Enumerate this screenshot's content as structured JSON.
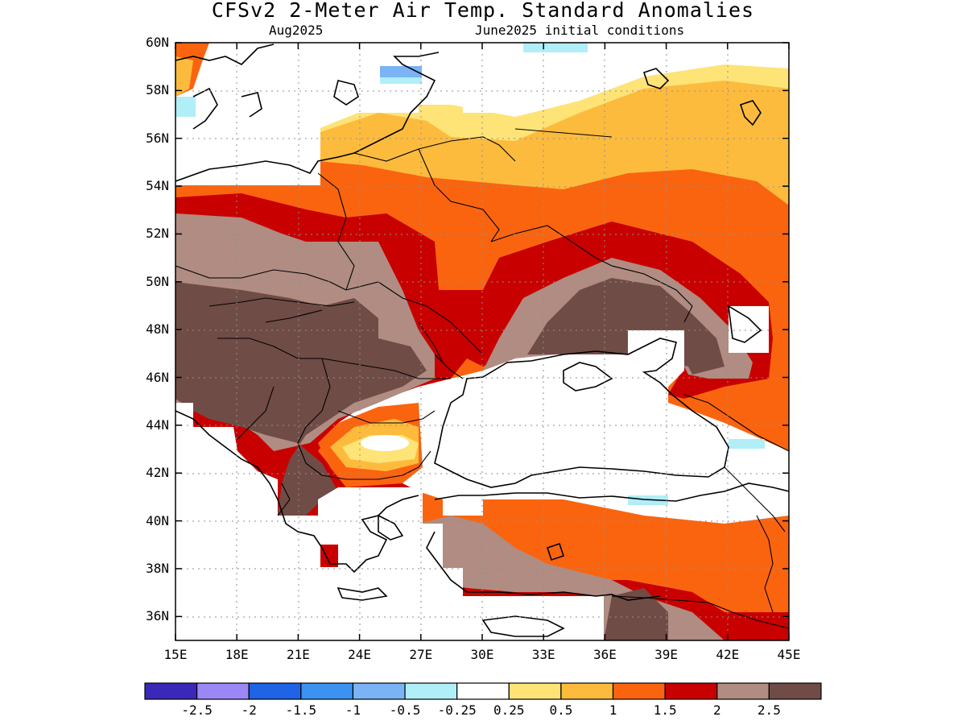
{
  "header": {
    "title": "CFSv2 2-Meter Air Temp. Standard Anomalies",
    "valid_month": "Aug2025",
    "init_conditions": "June2025 initial conditions"
  },
  "axes": {
    "lat_labels": [
      "60N",
      "58N",
      "56N",
      "54N",
      "52N",
      "50N",
      "48N",
      "46N",
      "44N",
      "42N",
      "40N",
      "38N",
      "36N"
    ],
    "lat_values": [
      60,
      58,
      56,
      54,
      52,
      50,
      48,
      46,
      44,
      42,
      40,
      38,
      36
    ],
    "lon_labels": [
      "15E",
      "18E",
      "21E",
      "24E",
      "27E",
      "30E",
      "33E",
      "36E",
      "39E",
      "42E",
      "45E"
    ],
    "lon_values": [
      15,
      18,
      21,
      24,
      27,
      30,
      33,
      36,
      39,
      42,
      45
    ],
    "lon_range": [
      15,
      45
    ],
    "lat_range": [
      35,
      60
    ],
    "grid": "dotted"
  },
  "legend": {
    "position": "bottom",
    "colors": [
      "#3a28b8",
      "#9b87f5",
      "#1f63e6",
      "#3c92f0",
      "#7ab4f5",
      "#b0eef8",
      "#ffffff",
      "#fee377",
      "#fdbb3d",
      "#fb640f",
      "#c80000",
      "#b08c82",
      "#704c46"
    ],
    "labels": [
      "-2.5",
      "-2",
      "-1.5",
      "-1",
      "-0.5",
      "-0.25",
      "0.25",
      "0.5",
      "1",
      "1.5",
      "2",
      "2.5"
    ]
  },
  "map_data": {
    "variable": "2m air temperature standard anomaly",
    "region": "Eastern Europe / Black Sea",
    "color_keys": {
      "warm1": "#fee377",
      "warm2": "#fdbb3d",
      "warm3": "#fb640f",
      "warm4": "#c80000",
      "warm5": "#b08c82",
      "warm6": "#704c46",
      "cool1": "#b0eef8",
      "cool2": "#7ab4f5"
    }
  }
}
